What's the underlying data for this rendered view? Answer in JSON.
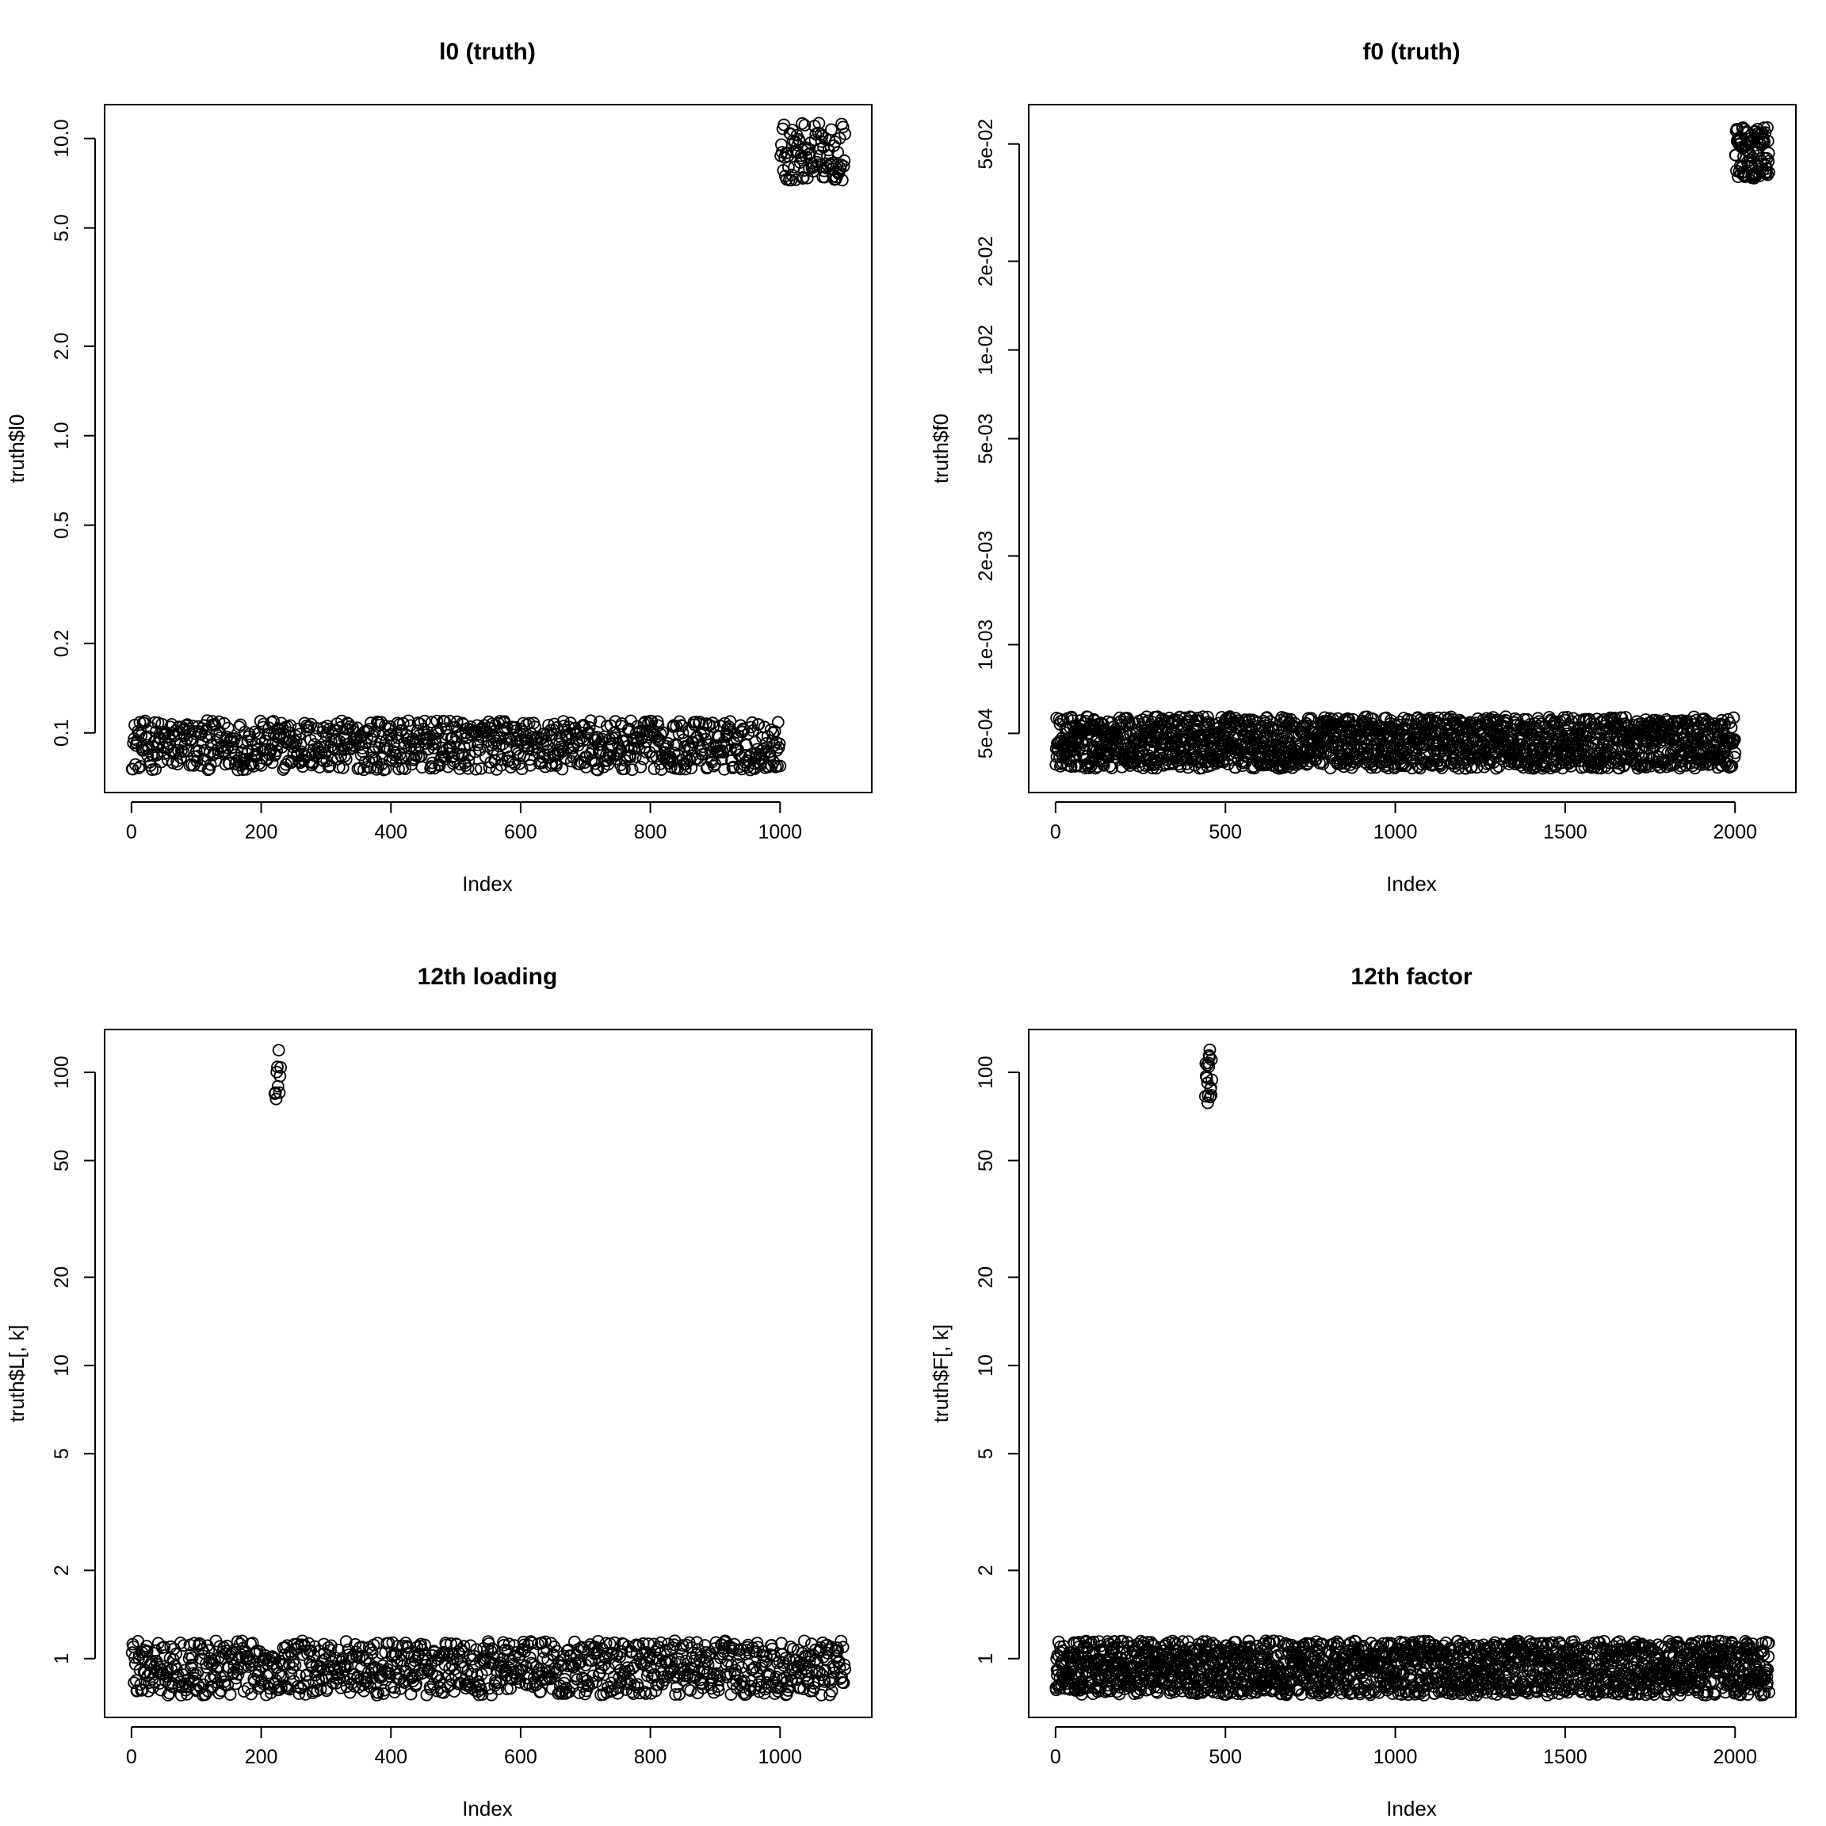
{
  "chart_data": [
    {
      "type": "scatter",
      "title": "l0 (truth)",
      "xlabel": "Index",
      "ylabel": "truth$l0",
      "y_scale": "log",
      "xlim": [
        0,
        1100
      ],
      "ylim": [
        0.063,
        13.0
      ],
      "xticks": [
        {
          "value": 0,
          "label": "0"
        },
        {
          "value": 200,
          "label": "200"
        },
        {
          "value": 400,
          "label": "400"
        },
        {
          "value": 600,
          "label": "600"
        },
        {
          "value": 800,
          "label": "800"
        },
        {
          "value": 1000,
          "label": "1000"
        }
      ],
      "yticks": [
        {
          "value": 0.1,
          "label": "0.1"
        },
        {
          "value": 0.2,
          "label": "0.2"
        },
        {
          "value": 0.5,
          "label": "0.5"
        },
        {
          "value": 1.0,
          "label": "1.0"
        },
        {
          "value": 2.0,
          "label": "2.0"
        },
        {
          "value": 5.0,
          "label": "5.0"
        },
        {
          "value": 10.0,
          "label": "10.0"
        }
      ],
      "grid": false,
      "point_groups": [
        {
          "x_range": [
            1,
            1000
          ],
          "y_range": [
            0.075,
            0.11
          ],
          "approx_count": 1000
        },
        {
          "x_range": [
            1001,
            1100
          ],
          "y_range": [
            7.2,
            11.3
          ],
          "approx_count": 100
        }
      ]
    },
    {
      "type": "scatter",
      "title": "f0 (truth)",
      "xlabel": "Index",
      "ylabel": "truth$f0",
      "y_scale": "log",
      "xlim": [
        0,
        2100
      ],
      "ylim": [
        0.000315,
        0.068
      ],
      "xticks": [
        {
          "value": 0,
          "label": "0"
        },
        {
          "value": 500,
          "label": "500"
        },
        {
          "value": 1000,
          "label": "1000"
        },
        {
          "value": 1500,
          "label": "1500"
        },
        {
          "value": 2000,
          "label": "2000"
        }
      ],
      "yticks": [
        {
          "value": 0.0005,
          "label": "5e-04"
        },
        {
          "value": 0.001,
          "label": "1e-03"
        },
        {
          "value": 0.002,
          "label": "2e-03"
        },
        {
          "value": 0.005,
          "label": "5e-03"
        },
        {
          "value": 0.01,
          "label": "1e-02"
        },
        {
          "value": 0.02,
          "label": "2e-02"
        },
        {
          "value": 0.05,
          "label": "5e-02"
        }
      ],
      "grid": false,
      "point_groups": [
        {
          "x_range": [
            1,
            2000
          ],
          "y_range": [
            0.00038,
            0.00057
          ],
          "approx_count": 2000
        },
        {
          "x_range": [
            2001,
            2100
          ],
          "y_range": [
            0.038,
            0.057
          ],
          "approx_count": 100
        }
      ]
    },
    {
      "type": "scatter",
      "title": "12th loading",
      "xlabel": "Index",
      "ylabel": "truth$L[, k]",
      "y_scale": "log",
      "xlim": [
        0,
        1100
      ],
      "ylim": [
        0.63,
        140
      ],
      "xticks": [
        {
          "value": 0,
          "label": "0"
        },
        {
          "value": 200,
          "label": "200"
        },
        {
          "value": 400,
          "label": "400"
        },
        {
          "value": 600,
          "label": "600"
        },
        {
          "value": 800,
          "label": "800"
        },
        {
          "value": 1000,
          "label": "1000"
        }
      ],
      "yticks": [
        {
          "value": 1,
          "label": "1"
        },
        {
          "value": 2,
          "label": "2"
        },
        {
          "value": 5,
          "label": "5"
        },
        {
          "value": 10,
          "label": "10"
        },
        {
          "value": 20,
          "label": "20"
        },
        {
          "value": 50,
          "label": "50"
        },
        {
          "value": 100,
          "label": "100"
        }
      ],
      "grid": false,
      "point_groups": [
        {
          "x_range": [
            1,
            1100
          ],
          "y_range": [
            0.75,
            1.15
          ],
          "approx_count": 1090
        },
        {
          "x_range": [
            221,
            230
          ],
          "y_range": [
            80,
            120
          ],
          "approx_count": 10
        }
      ]
    },
    {
      "type": "scatter",
      "title": "12th factor",
      "xlabel": "Index",
      "ylabel": "truth$F[, k]",
      "y_scale": "log",
      "xlim": [
        0,
        2100
      ],
      "ylim": [
        0.63,
        140
      ],
      "xticks": [
        {
          "value": 0,
          "label": "0"
        },
        {
          "value": 500,
          "label": "500"
        },
        {
          "value": 1000,
          "label": "1000"
        },
        {
          "value": 1500,
          "label": "1500"
        },
        {
          "value": 2000,
          "label": "2000"
        }
      ],
      "yticks": [
        {
          "value": 1,
          "label": "1"
        },
        {
          "value": 2,
          "label": "2"
        },
        {
          "value": 5,
          "label": "5"
        },
        {
          "value": 10,
          "label": "10"
        },
        {
          "value": 20,
          "label": "20"
        },
        {
          "value": 50,
          "label": "50"
        },
        {
          "value": 100,
          "label": "100"
        }
      ],
      "grid": false,
      "point_groups": [
        {
          "x_range": [
            1,
            2100
          ],
          "y_range": [
            0.75,
            1.15
          ],
          "approx_count": 2080
        },
        {
          "x_range": [
            441,
            460
          ],
          "y_range": [
            78,
            120
          ],
          "approx_count": 20
        }
      ]
    }
  ]
}
